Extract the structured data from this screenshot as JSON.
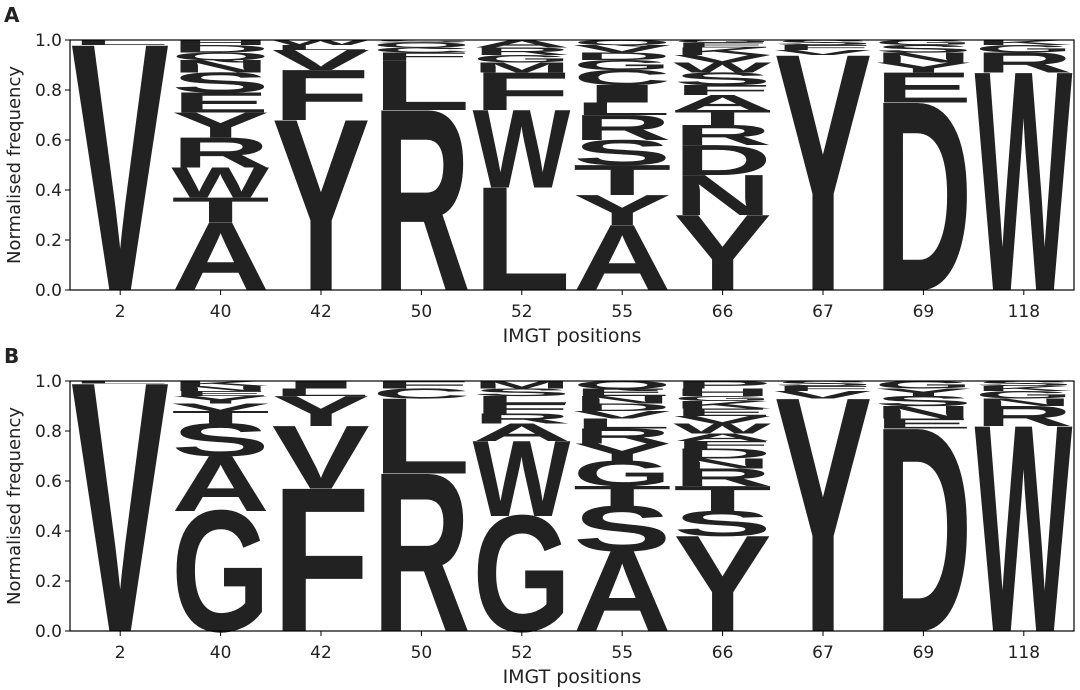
{
  "chart_data": [
    {
      "type": "logo",
      "panel": "A",
      "xlabel": "IMGT positions",
      "ylabel": "Normalised frequency",
      "categories": [
        "2",
        "40",
        "42",
        "50",
        "52",
        "55",
        "66",
        "67",
        "69",
        "118"
      ],
      "ylim": [
        0,
        1
      ],
      "yticks": [
        {
          "value": 0,
          "label": "0.0"
        },
        {
          "value": 0.2,
          "label": "0.2"
        },
        {
          "value": 0.4,
          "label": "0.4"
        },
        {
          "value": 0.6,
          "label": "0.6"
        },
        {
          "value": 0.8,
          "label": "0.8"
        },
        {
          "value": 1,
          "label": "1.0"
        }
      ],
      "letter_colors": {
        "V": "#c98bc0",
        "A": "#f28b85",
        "Y": "#c5168c",
        "R": "#4a68b5",
        "L": "#8dc83e",
        "W": "#b3579f",
        "D": "#e8252b",
        "F": "#f4a660",
        "G": "#b88a2b",
        "S": "#25247a",
        "T": "#7a4fa6",
        "N": "#17817f",
        "E": "#ef7f5c",
        "Q": "#5aa05a",
        "H": "#4fa8d8",
        "C": "#b8262e",
        "M": "#2e6f3a",
        "I": "#7a7a22",
        "K": "#d84f9a",
        "P": "#f2d21c"
      },
      "stacks": [
        {
          "letters": [
            "V",
            "L"
          ],
          "values": [
            0.98,
            0.02
          ]
        },
        {
          "letters": [
            "A",
            "T",
            "W",
            "R",
            "Y",
            "E",
            "S",
            "N",
            "Q",
            "D",
            "H"
          ],
          "values": [
            0.27,
            0.1,
            0.12,
            0.12,
            0.1,
            0.08,
            0.08,
            0.05,
            0.03,
            0.03,
            0.02
          ]
        },
        {
          "letters": [
            "Y",
            "F",
            "V",
            "L",
            "W"
          ],
          "values": [
            0.68,
            0.2,
            0.08,
            0.02,
            0.02
          ]
        },
        {
          "letters": [
            "R",
            "L",
            "F",
            "C",
            "Q",
            "S"
          ],
          "values": [
            0.72,
            0.2,
            0.03,
            0.02,
            0.02,
            0.01
          ]
        },
        {
          "letters": [
            "L",
            "W",
            "F",
            "M",
            "G",
            "R",
            "A"
          ],
          "values": [
            0.41,
            0.31,
            0.15,
            0.04,
            0.03,
            0.03,
            0.03
          ]
        },
        {
          "letters": [
            "A",
            "Y",
            "T",
            "S",
            "R",
            "L",
            "I",
            "C",
            "G",
            "D",
            "V",
            "Q"
          ],
          "values": [
            0.26,
            0.12,
            0.12,
            0.1,
            0.1,
            0.05,
            0.07,
            0.06,
            0.04,
            0.03,
            0.03,
            0.02
          ]
        },
        {
          "letters": [
            "Y",
            "N",
            "D",
            "R",
            "T",
            "A",
            "F",
            "S",
            "W",
            "V",
            "K",
            "E",
            "G"
          ],
          "values": [
            0.3,
            0.16,
            0.12,
            0.08,
            0.06,
            0.06,
            0.04,
            0.05,
            0.04,
            0.03,
            0.03,
            0.02,
            0.01
          ]
        },
        {
          "letters": [
            "Y",
            "V",
            "F",
            "S"
          ],
          "values": [
            0.94,
            0.02,
            0.02,
            0.02
          ]
        },
        {
          "letters": [
            "D",
            "E",
            "Y",
            "N",
            "S",
            "G"
          ],
          "values": [
            0.75,
            0.12,
            0.04,
            0.04,
            0.03,
            0.02
          ]
        },
        {
          "letters": [
            "W",
            "R",
            "G",
            "K"
          ],
          "values": [
            0.87,
            0.08,
            0.03,
            0.02
          ]
        }
      ]
    },
    {
      "type": "logo",
      "panel": "B",
      "xlabel": "IMGT positions",
      "ylabel": "Normalised frequency",
      "categories": [
        "2",
        "40",
        "42",
        "50",
        "52",
        "55",
        "66",
        "67",
        "69",
        "118"
      ],
      "ylim": [
        0,
        1
      ],
      "yticks": [
        {
          "value": 0,
          "label": "0.0"
        },
        {
          "value": 0.2,
          "label": "0.2"
        },
        {
          "value": 0.4,
          "label": "0.4"
        },
        {
          "value": 0.6,
          "label": "0.6"
        },
        {
          "value": 0.8,
          "label": "0.8"
        },
        {
          "value": 1,
          "label": "1.0"
        }
      ],
      "letter_colors": {
        "V": "#c98bc0",
        "A": "#f28b85",
        "Y": "#c5168c",
        "R": "#4a68b5",
        "L": "#8dc83e",
        "W": "#b3579f",
        "D": "#e8252b",
        "F": "#f4a660",
        "G": "#b88a2b",
        "S": "#25247a",
        "T": "#7a4fa6",
        "N": "#17817f",
        "E": "#ef7f5c",
        "Q": "#5aa05a",
        "H": "#4fa8d8",
        "C": "#b8262e",
        "M": "#2e6f3a",
        "I": "#7a7a22",
        "K": "#d84f9a",
        "P": "#f2d21c"
      },
      "stacks": [
        {
          "letters": [
            "V",
            "L"
          ],
          "values": [
            0.99,
            0.01
          ]
        },
        {
          "letters": [
            "G",
            "A",
            "S",
            "T",
            "V",
            "Y",
            "E",
            "N",
            "K"
          ],
          "values": [
            0.48,
            0.22,
            0.13,
            0.05,
            0.03,
            0.03,
            0.02,
            0.02,
            0.02
          ]
        },
        {
          "letters": [
            "F",
            "V",
            "Y",
            "L",
            "I"
          ],
          "values": [
            0.57,
            0.25,
            0.12,
            0.03,
            0.03
          ]
        },
        {
          "letters": [
            "R",
            "L",
            "C",
            "F"
          ],
          "values": [
            0.63,
            0.3,
            0.04,
            0.03
          ]
        },
        {
          "letters": [
            "G",
            "W",
            "A",
            "R",
            "F",
            "L",
            "S",
            "M"
          ],
          "values": [
            0.46,
            0.3,
            0.07,
            0.04,
            0.04,
            0.03,
            0.03,
            0.03
          ]
        },
        {
          "letters": [
            "A",
            "S",
            "T",
            "G",
            "Y",
            "R",
            "L",
            "V",
            "D",
            "N",
            "E",
            "Q"
          ],
          "values": [
            0.32,
            0.18,
            0.08,
            0.1,
            0.07,
            0.06,
            0.04,
            0.03,
            0.03,
            0.03,
            0.03,
            0.03
          ]
        },
        {
          "letters": [
            "Y",
            "S",
            "T",
            "R",
            "N",
            "D",
            "F",
            "A",
            "W",
            "V",
            "E",
            "K",
            "G",
            "H",
            "P"
          ],
          "values": [
            0.38,
            0.1,
            0.1,
            0.07,
            0.04,
            0.04,
            0.03,
            0.03,
            0.04,
            0.03,
            0.03,
            0.03,
            0.02,
            0.03,
            0.03
          ]
        },
        {
          "letters": [
            "Y",
            "V",
            "F",
            "S"
          ],
          "values": [
            0.93,
            0.03,
            0.02,
            0.02
          ]
        },
        {
          "letters": [
            "D",
            "E",
            "N",
            "S",
            "Y",
            "G"
          ],
          "values": [
            0.81,
            0.04,
            0.05,
            0.04,
            0.03,
            0.03
          ]
        },
        {
          "letters": [
            "W",
            "R",
            "N",
            "G",
            "K",
            "S"
          ],
          "values": [
            0.82,
            0.08,
            0.03,
            0.03,
            0.02,
            0.02
          ]
        }
      ]
    }
  ]
}
